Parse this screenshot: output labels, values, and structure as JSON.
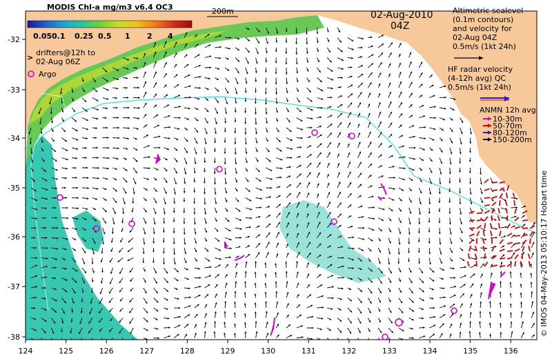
{
  "colorbar": {
    "title": "MODIS Chl-a mg/m3 v6.4 OC3",
    "ticks": [
      "0.05",
      "0.1",
      "0.25",
      "0.5",
      "1",
      "2",
      "4"
    ],
    "colors": [
      "#1a1a9a",
      "#1f5fd6",
      "#18a8d8",
      "#22c9a0",
      "#6fd23a",
      "#c7e023",
      "#f0c020",
      "#f07a1a",
      "#d72a1a",
      "#9a0f10"
    ]
  },
  "scale_label": "200m",
  "date": "02-Aug-2010",
  "time": "04Z",
  "legend_altimetry": [
    "Altimetric sealevel",
    "(0.1m contours)",
    "and velocity for",
    "02-Aug 04Z",
    "0.5m/s (1kt 24h)"
  ],
  "legend_hf": [
    "HF radar velocity",
    "(4-12h avg) QC",
    "0.5m/s (1kt 24h)"
  ],
  "legend_drifters": [
    "drifters@12h to",
    "02-Aug 06Z"
  ],
  "legend_argo": "Argo",
  "legend_anmn": {
    "title": "ANMN 12h avg",
    "items": [
      {
        "label": "10-30m",
        "color": "#d400d4"
      },
      {
        "label": "50-70m",
        "color": "#e00000"
      },
      {
        "label": "80-120m",
        "color": "#1a1ae0"
      },
      {
        "label": "150-200m",
        "color": "#000000"
      }
    ]
  },
  "x_ticks": [
    "124",
    "125",
    "126",
    "127",
    "128",
    "129",
    "130",
    "131",
    "132",
    "133",
    "134",
    "135",
    "136"
  ],
  "y_ticks": [
    "-32",
    "-33",
    "-34",
    "-35",
    "-36",
    "-37",
    "-38"
  ],
  "credit": "© IMOS 04-May-2013 05:10:17 Hobart time",
  "colors": {
    "land": "#f6c89a",
    "ocean": "#ffffff",
    "contour": "#33e0e0",
    "arrow": "#000000",
    "argo": "#d400d4",
    "drifter": "#d400d4",
    "hf": "#e00000"
  }
}
